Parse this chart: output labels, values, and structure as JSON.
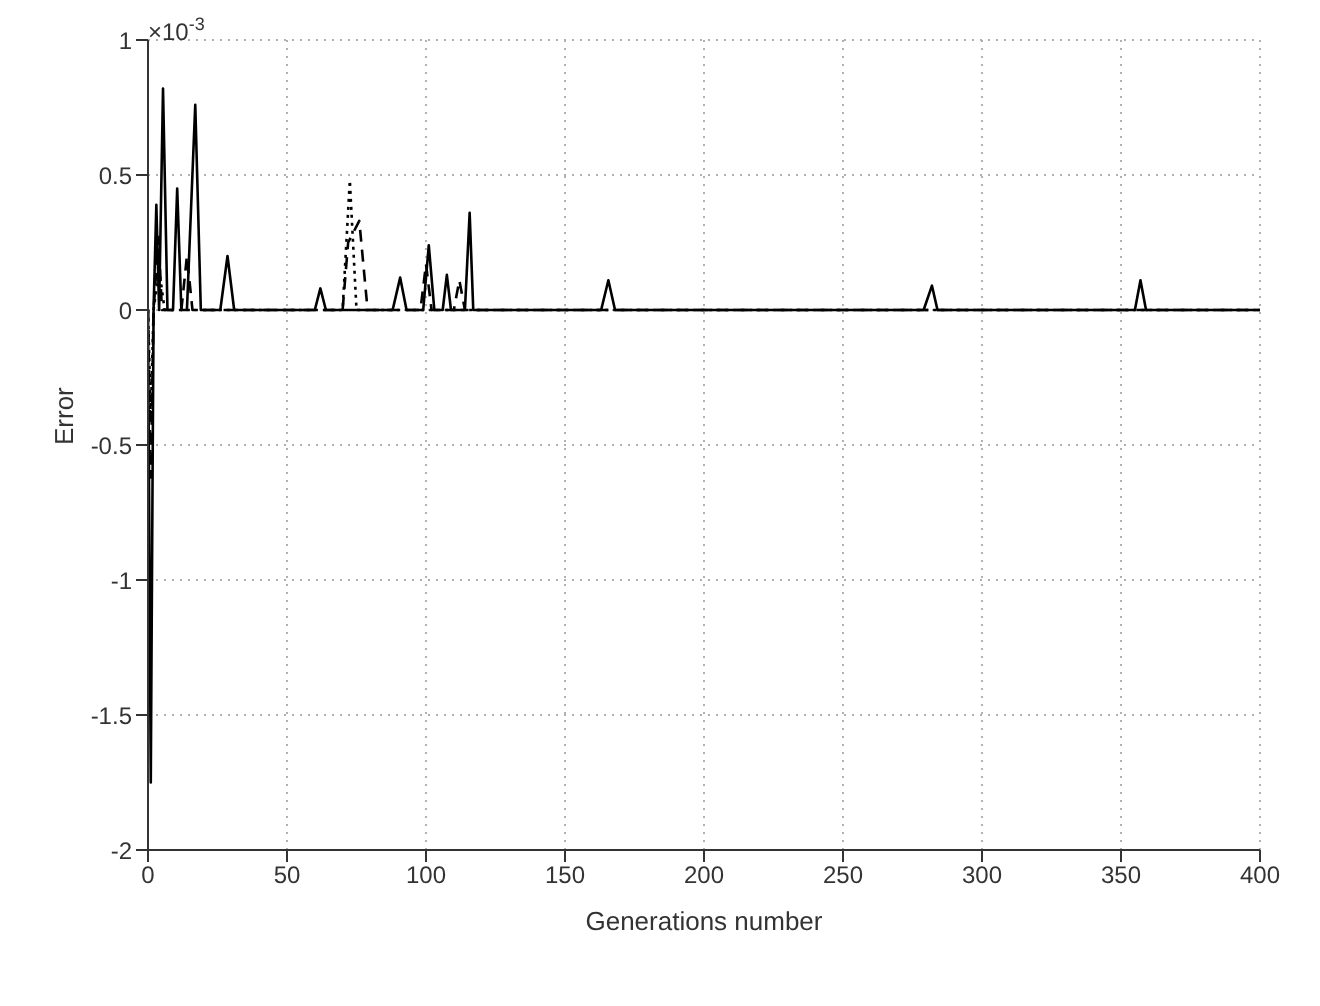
{
  "chart_data": {
    "type": "line",
    "xlabel": "Generations number",
    "ylabel": "Error",
    "annotations": [
      "×10$^{-3}$"
    ],
    "xlim": [
      0,
      400
    ],
    "xticks": [
      0,
      50,
      100,
      150,
      200,
      250,
      300,
      350,
      400
    ],
    "ylim": [
      -2,
      1
    ],
    "yticks": [
      -2,
      -1.5,
      -1,
      -0.5,
      0,
      0.5,
      1
    ],
    "grid": true,
    "marker": "none",
    "series": [
      {
        "color": "#000000",
        "line_style": "solid",
        "x": [
          0,
          1,
          2,
          3,
          4,
          5.4,
          7,
          9,
          10.5,
          12,
          14,
          17,
          19,
          22,
          26,
          28.6,
          31,
          60,
          62,
          64,
          88,
          90.7,
          93,
          99,
          101,
          103,
          106,
          107.5,
          109,
          114,
          115.7,
          117,
          163,
          165.6,
          168,
          279,
          282,
          284,
          355,
          357,
          359,
          400
        ],
        "values": [
          0,
          -1.75,
          0,
          0.39,
          0,
          0.82,
          0,
          0,
          0.45,
          0,
          0,
          0.76,
          0,
          0,
          0,
          0.2,
          0,
          0,
          0.08,
          0,
          0,
          0.12,
          0,
          0,
          0.24,
          0,
          0,
          0.13,
          0,
          0,
          0.36,
          0,
          0,
          0.11,
          0,
          0,
          0.09,
          0,
          0,
          0.11,
          0,
          0
        ]
      },
      {
        "color": "#000000",
        "line_style": "dashed",
        "x": [
          0,
          1,
          2,
          3.8,
          5,
          12,
          14,
          16,
          70,
          72,
          76,
          79,
          98,
          100,
          102,
          110,
          112,
          114,
          400
        ],
        "values": [
          0,
          -0.62,
          0,
          0.27,
          0,
          0,
          0.2,
          0,
          0,
          0.25,
          0.33,
          0,
          0,
          0.17,
          0,
          0,
          0.11,
          0,
          0
        ]
      },
      {
        "color": "#000000",
        "line_style": "dotted",
        "x": [
          0,
          1,
          2,
          4,
          6,
          70,
          72.6,
          75,
          400
        ],
        "values": [
          0,
          -0.4,
          0,
          0.15,
          0,
          0,
          0.48,
          0,
          0
        ]
      }
    ]
  }
}
